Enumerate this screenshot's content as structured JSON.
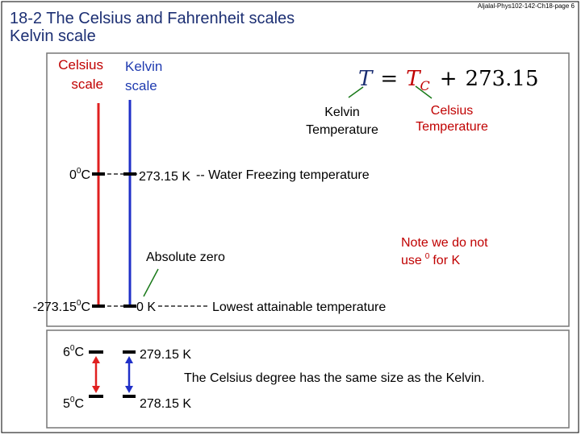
{
  "header": {
    "title": "18-2 The Celsius and Fahrenheit scales",
    "subtitle": "Kelvin scale",
    "source": "Aljalal-Phys102-142-Ch18-page 6"
  },
  "scales": {
    "celsius": [
      "Celsius",
      "scale"
    ],
    "kelvin": [
      "Kelvin",
      "scale"
    ]
  },
  "formula": {
    "lhs": "T",
    "equals": "=",
    "term": "T",
    "subscript": "C",
    "plus": "+",
    "constant": "273.15"
  },
  "annotations": {
    "kelvin_temperature": [
      "Kelvin",
      "Temperature"
    ],
    "celsius_temperature": [
      "Celsius",
      "Temperature"
    ],
    "absolute_zero": "Absolute zero",
    "note": {
      "line1": "Note we do not",
      "line2_start": "use",
      "degree": "0",
      "line2_end": "for K"
    }
  },
  "points": {
    "freezing": {
      "celsius": "0",
      "degree": "0",
      "unit": "C",
      "kelvin": "273.15 K",
      "label": "-- Water Freezing temperature"
    },
    "absolute_zero": {
      "celsius": "-273.15",
      "degree": "0",
      "unit": "C",
      "kelvin": "0 K",
      "label": "Lowest attainable temperature"
    }
  },
  "comparison": {
    "upper": {
      "celsius": "6",
      "degree": "0",
      "unit": "C",
      "kelvin": "279.15 K"
    },
    "lower": {
      "celsius": "5",
      "degree": "0",
      "unit": "C",
      "kelvin": "278.15 K"
    },
    "statement": "The Celsius degree has the same size as the Kelvin."
  }
}
